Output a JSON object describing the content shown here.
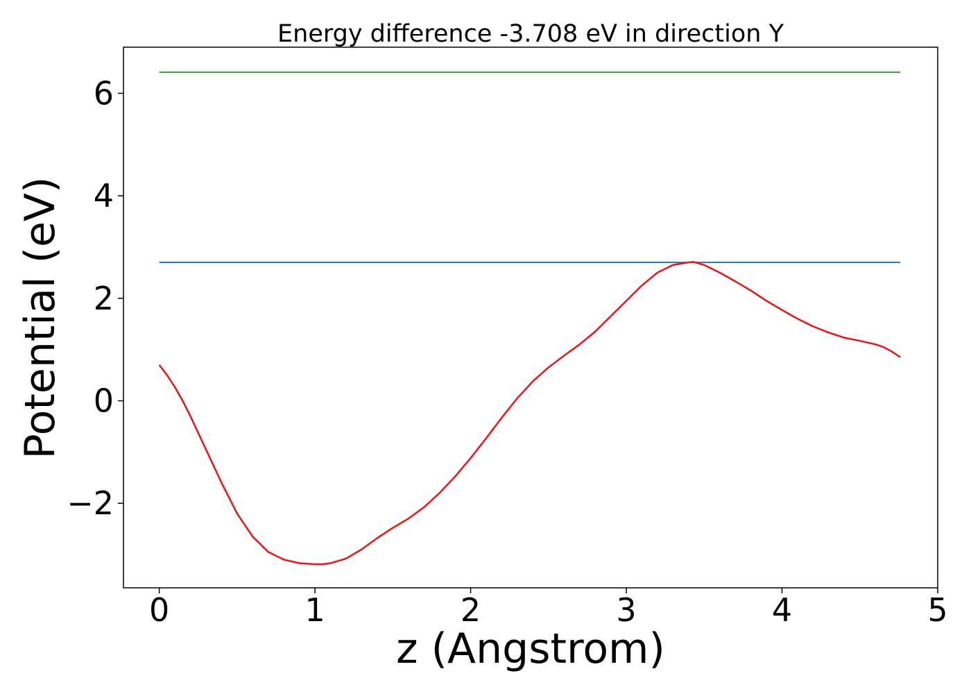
{
  "chart_data": {
    "type": "line",
    "title": "Energy difference -3.708 eV in direction Y",
    "xlabel": "z (Angstrom)",
    "ylabel": "Potential (eV)",
    "xlim": [
      -0.23,
      5.0
    ],
    "ylim": [
      -3.65,
      6.9
    ],
    "xticks": [
      0,
      1,
      2,
      3,
      4,
      5
    ],
    "xtick_labels": [
      "0",
      "1",
      "2",
      "3",
      "4",
      "5"
    ],
    "yticks": [
      -2,
      0,
      2,
      4,
      6
    ],
    "ytick_labels": [
      "−2",
      "0",
      "2",
      "4",
      "6"
    ],
    "grid": false,
    "colors": {
      "top_level": "#2ca02c",
      "bottom_level": "#1f77b4",
      "potential": "#e31a1c"
    },
    "series": [
      {
        "x": [
          0,
          4.76
        ],
        "y": [
          6.41,
          6.41
        ],
        "color": "#2ca02c"
      },
      {
        "x": [
          0,
          4.76
        ],
        "y": [
          2.7,
          2.7
        ],
        "color": "#1f77b4"
      },
      {
        "color": "#e31a1c",
        "x": [
          0.0,
          0.05,
          0.1,
          0.15,
          0.2,
          0.3,
          0.4,
          0.5,
          0.6,
          0.7,
          0.8,
          0.9,
          1.0,
          1.05,
          1.1,
          1.2,
          1.3,
          1.4,
          1.5,
          1.6,
          1.7,
          1.8,
          1.9,
          2.0,
          2.1,
          2.2,
          2.3,
          2.4,
          2.5,
          2.6,
          2.7,
          2.8,
          2.9,
          3.0,
          3.1,
          3.2,
          3.3,
          3.4,
          3.43,
          3.5,
          3.6,
          3.7,
          3.8,
          3.9,
          4.0,
          4.1,
          4.2,
          4.3,
          4.4,
          4.5,
          4.6,
          4.65,
          4.7,
          4.76
        ],
        "y": [
          0.7,
          0.5,
          0.27,
          0.0,
          -0.3,
          -0.95,
          -1.6,
          -2.2,
          -2.65,
          -2.95,
          -3.1,
          -3.17,
          -3.19,
          -3.19,
          -3.17,
          -3.08,
          -2.9,
          -2.68,
          -2.48,
          -2.3,
          -2.08,
          -1.8,
          -1.48,
          -1.12,
          -0.73,
          -0.33,
          0.05,
          0.38,
          0.65,
          0.88,
          1.1,
          1.35,
          1.65,
          1.95,
          2.25,
          2.5,
          2.65,
          2.7,
          2.71,
          2.65,
          2.5,
          2.33,
          2.15,
          1.95,
          1.77,
          1.6,
          1.45,
          1.33,
          1.23,
          1.17,
          1.1,
          1.05,
          0.97,
          0.85
        ]
      }
    ]
  }
}
